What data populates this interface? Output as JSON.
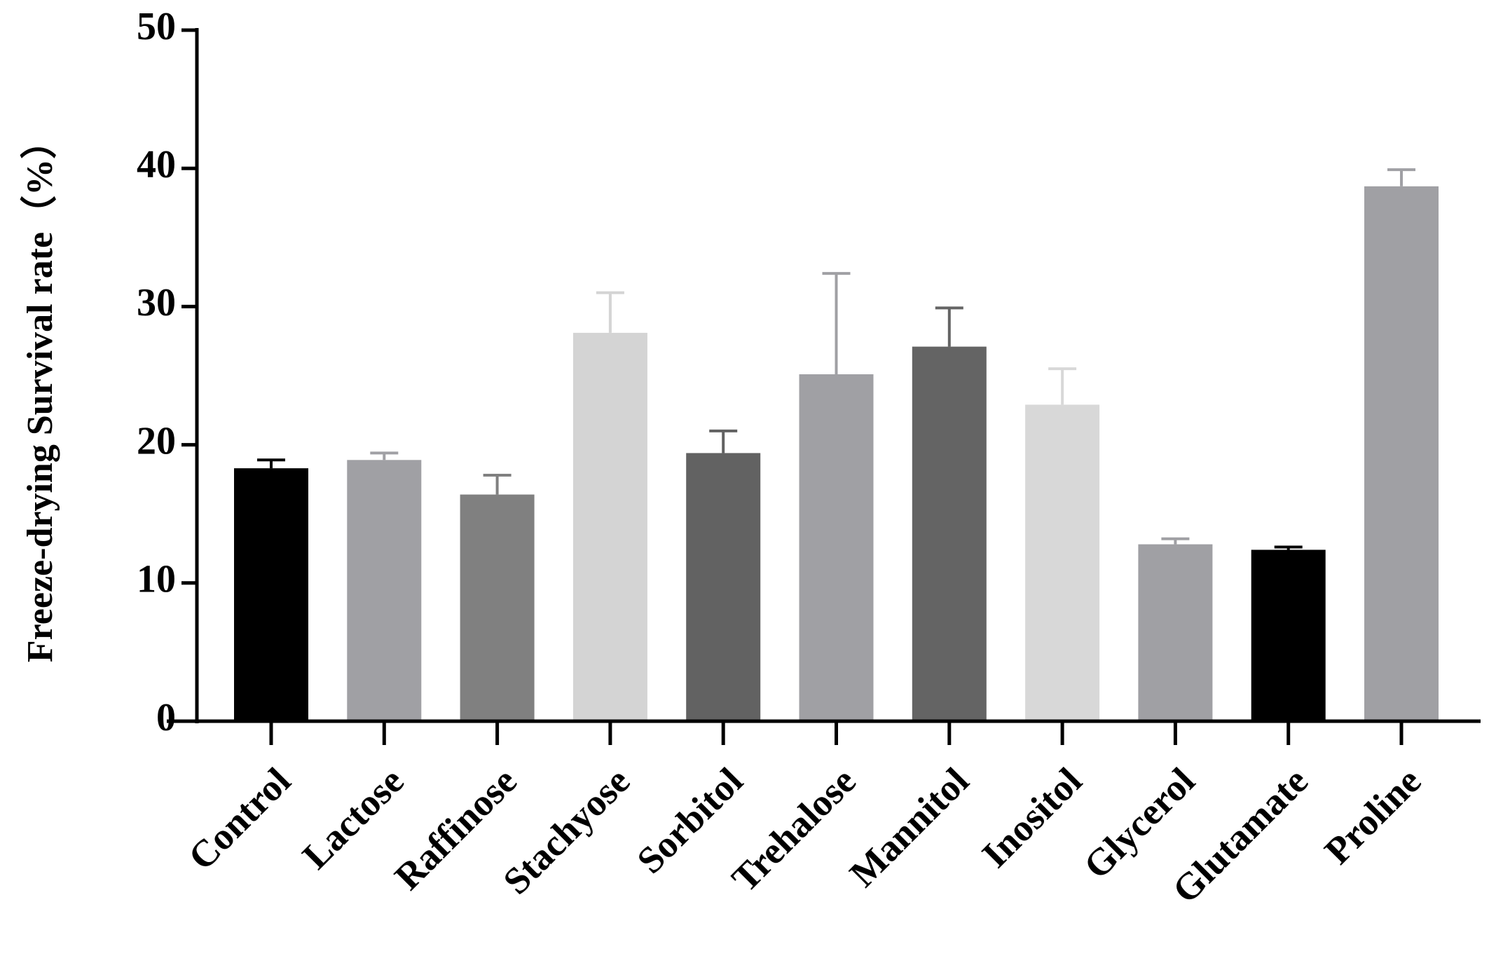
{
  "chart_data": {
    "type": "bar",
    "y_label": "Freeze-drying Survival rate（%）",
    "categories": [
      "Control",
      "Lactose",
      "Raffinose",
      "Stachyose",
      "Sorbitol",
      "Trehalose",
      "Mannitol",
      "Inositol",
      "Glycerol",
      "Glutamate",
      "Proline"
    ],
    "values": [
      18.3,
      18.9,
      16.4,
      28.1,
      19.4,
      25.1,
      27.1,
      22.9,
      12.8,
      12.4,
      38.7
    ],
    "errors": [
      0.6,
      0.5,
      1.4,
      2.9,
      1.6,
      7.3,
      2.8,
      2.6,
      0.4,
      0.2,
      1.2
    ],
    "colors": [
      "#000000",
      "#a0a0a4",
      "#808080",
      "#d4d4d4",
      "#626262",
      "#a0a0a4",
      "#646464",
      "#d8d8d8",
      "#a0a0a4",
      "#000000",
      "#a0a0a4"
    ],
    "ylim": [
      0,
      50
    ],
    "yticks": [
      0,
      10,
      20,
      30,
      40,
      50
    ],
    "grid": false
  }
}
